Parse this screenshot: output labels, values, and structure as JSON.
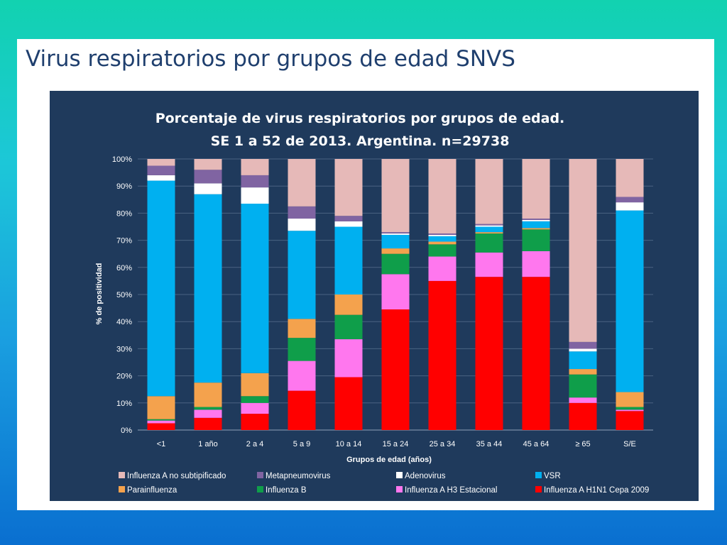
{
  "slide": {
    "title": "Virus respiratorios por grupos de edad SNVS"
  },
  "colors": {
    "background_top": "#12d2b0",
    "background_bottom": "#0a6fd0",
    "panel": "#1f3a5c"
  },
  "chart_data": {
    "type": "bar",
    "stacked": true,
    "title_lines": [
      "Porcentaje de virus respiratorios por grupos de edad.",
      "SE 1 a 52 de 2013. Argentina. n=29738"
    ],
    "xlabel": "Grupos de edad (años)",
    "ylabel": "% de positividad",
    "ylim": [
      0,
      100
    ],
    "yticks": [
      "0%",
      "10%",
      "20%",
      "30%",
      "40%",
      "50%",
      "60%",
      "70%",
      "80%",
      "90%",
      "100%"
    ],
    "grid": true,
    "legend_position": "bottom",
    "categories": [
      "<1",
      "1 año",
      "2 a 4",
      "5 a 9",
      "10 a 14",
      "15 a 24",
      "25 a 34",
      "35 a 44",
      "45 a 64",
      "≥ 65",
      "S/E"
    ],
    "series": [
      {
        "name": "Influenza A H1N1 Cepa 2009",
        "color": "#ff0000",
        "values": [
          2.5,
          4.5,
          6,
          14.5,
          19.5,
          44.5,
          55,
          56.5,
          56.5,
          10,
          7
        ]
      },
      {
        "name": "Influenza A H3 Estacional",
        "color": "#ff77ee",
        "values": [
          1,
          3,
          4,
          11,
          14,
          13,
          9,
          9,
          9.5,
          2,
          0.5
        ]
      },
      {
        "name": "Influenza B",
        "color": "#0f9e4a",
        "values": [
          0.5,
          1,
          2.5,
          8.5,
          9,
          7.5,
          4.5,
          7,
          8,
          8.5,
          1
        ]
      },
      {
        "name": "Parainfluenza",
        "color": "#f4a24d",
        "values": [
          8.5,
          9,
          8.5,
          7,
          7.5,
          2,
          1,
          0.5,
          0.5,
          2,
          5.5
        ]
      },
      {
        "name": "VSR",
        "color": "#00b0f0",
        "values": [
          79.5,
          69.5,
          62.5,
          32.5,
          25,
          5,
          2,
          2,
          2.5,
          6.5,
          67
        ]
      },
      {
        "name": "Adenovirus",
        "color": "#ffffff",
        "values": [
          2,
          4,
          6,
          4.5,
          2,
          0.5,
          0.5,
          0.5,
          0.5,
          1,
          3
        ]
      },
      {
        "name": "Metapneumovirus",
        "color": "#8064a2",
        "values": [
          3.5,
          5,
          4.5,
          4.5,
          2,
          0.5,
          0.5,
          0.5,
          0.5,
          2.5,
          2
        ]
      },
      {
        "name": "Influenza A no subtipificado",
        "color": "#e6b9b8",
        "values": [
          2.5,
          4,
          6,
          17.5,
          21,
          27,
          27.5,
          24,
          22,
          67.5,
          14
        ]
      }
    ],
    "legend_order": [
      "Influenza A no subtipificado",
      "Metapneumovirus",
      "Adenovirus",
      "VSR",
      "Parainfluenza",
      "Influenza B",
      "Influenza A H3 Estacional",
      "Influenza A H1N1 Cepa 2009"
    ]
  }
}
